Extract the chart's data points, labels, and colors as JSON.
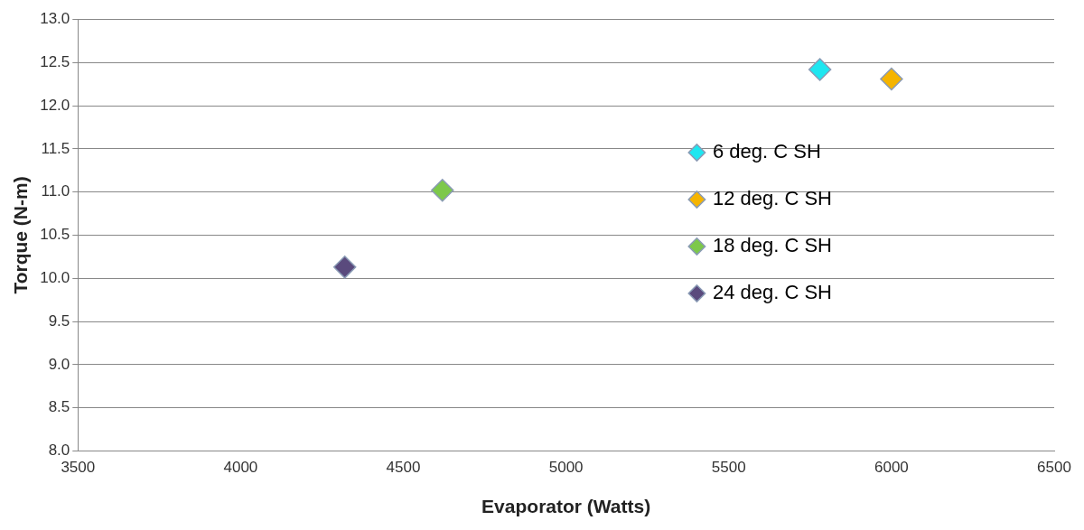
{
  "chart_data": {
    "type": "scatter",
    "xlabel": "Evaporator (Watts)",
    "ylabel": "Torque (N-m)",
    "xlim": [
      3500,
      6500
    ],
    "xticks": [
      3500,
      4000,
      4500,
      5000,
      5500,
      6000,
      6500
    ],
    "ylim": [
      8.0,
      13.0
    ],
    "yticks": [
      {
        "value": 8,
        "label": "8.0"
      },
      {
        "value": 8.5,
        "label": "8.5"
      },
      {
        "value": 9,
        "label": "9.0"
      },
      {
        "value": 9.5,
        "label": "9.5"
      },
      {
        "value": 10,
        "label": "10.0"
      },
      {
        "value": 10.5,
        "label": "10.5"
      },
      {
        "value": 11,
        "label": "11.0"
      },
      {
        "value": 11.5,
        "label": "11.5"
      },
      {
        "value": 12,
        "label": "12.0"
      },
      {
        "value": 12.5,
        "label": "12.5"
      },
      {
        "value": 13,
        "label": "13.0"
      }
    ],
    "grid": "y",
    "legend": "right",
    "marker": "diamond",
    "series": [
      {
        "name": "6 deg. C SH",
        "color": "#1ee6f0",
        "x": [
          5780
        ],
        "values": [
          12.42
        ]
      },
      {
        "name": "12 deg. C SH",
        "color": "#f5b400",
        "x": [
          6000
        ],
        "values": [
          12.31
        ]
      },
      {
        "name": "18 deg. C SH",
        "color": "#7dc84b",
        "x": [
          4620
        ],
        "values": [
          11.02
        ]
      },
      {
        "name": "24 deg. C SH",
        "color": "#5a4a7d",
        "x": [
          4320
        ],
        "values": [
          10.13
        ]
      }
    ]
  }
}
